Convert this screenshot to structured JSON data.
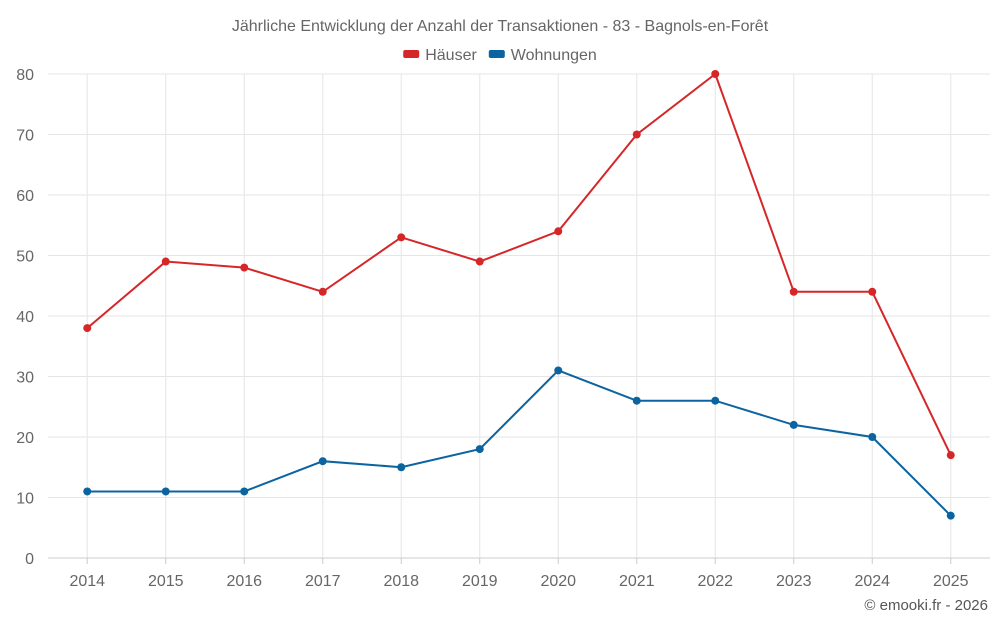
{
  "chart_data": {
    "type": "line",
    "title": "Jährliche Entwicklung der Anzahl der Transaktionen - 83 - Bagnols-en-Forêt",
    "categories": [
      "2014",
      "2015",
      "2016",
      "2017",
      "2018",
      "2019",
      "2020",
      "2021",
      "2022",
      "2023",
      "2024",
      "2025"
    ],
    "series": [
      {
        "name": "Häuser",
        "color": "#d62728",
        "values": [
          38,
          49,
          48,
          44,
          53,
          49,
          54,
          70,
          80,
          44,
          44,
          17
        ]
      },
      {
        "name": "Wohnungen",
        "color": "#0b64a0",
        "values": [
          11,
          11,
          11,
          16,
          15,
          18,
          31,
          26,
          26,
          22,
          20,
          7
        ]
      }
    ],
    "ylim": [
      0,
      80
    ],
    "yticks": [
      0,
      10,
      20,
      30,
      40,
      50,
      60,
      70,
      80
    ],
    "grid": true,
    "legend": "top-center",
    "credit": "© emooki.fr - 2026"
  }
}
